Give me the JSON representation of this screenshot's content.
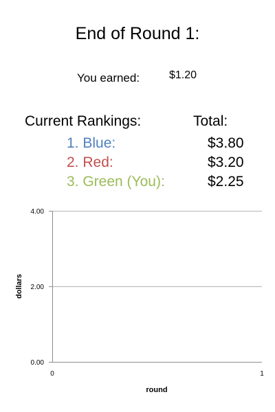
{
  "header": {
    "title": "End of Round 1:"
  },
  "earnings": {
    "label": "You earned:",
    "value": "$1.20"
  },
  "rankings": {
    "heading": "Current Rankings:",
    "total_heading": "Total:",
    "rows": [
      {
        "name": "1. Blue:",
        "total": "$3.80",
        "color": "#4f81bd"
      },
      {
        "name": "2. Red:",
        "total": "$3.20",
        "color": "#c0504d"
      },
      {
        "name": "3. Green (You):",
        "total": "$2.25",
        "color": "#9bbb59"
      }
    ]
  },
  "chart_data": {
    "type": "line",
    "xlabel": "round",
    "ylabel": "dollars",
    "x_ticks": [
      "0",
      "1"
    ],
    "y_ticks": [
      "0.00",
      "2.00",
      "4.00"
    ],
    "xlim": [
      0,
      1
    ],
    "ylim": [
      0,
      4
    ],
    "grid": "horizontal",
    "series": [],
    "grid_color": "#b3b3b3",
    "axis_color": "#8c8c8c"
  }
}
